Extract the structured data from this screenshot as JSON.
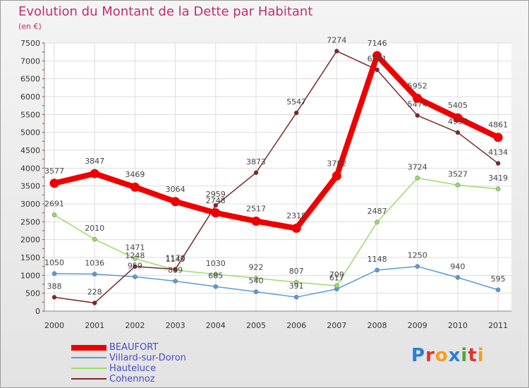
{
  "title": "Evolution du Montant de la Dette par Habitant",
  "subtitle": "(en €)",
  "logo": {
    "letters": [
      "P",
      "r",
      "o",
      "x",
      "i",
      "t",
      "i"
    ],
    "colors": [
      "#2a7fd4",
      "#e0342b",
      "#f0a020",
      "#2a7fd4",
      "#4aa83a",
      "#e0342b",
      "#f0a020"
    ]
  },
  "chart_data": {
    "type": "line",
    "categories": [
      "2000",
      "2001",
      "2002",
      "2003",
      "2004",
      "2005",
      "2006",
      "2007",
      "2008",
      "2009",
      "2010",
      "2011"
    ],
    "ylim": [
      0,
      7500
    ],
    "yticks": [
      "0",
      "500",
      "1000",
      "1500",
      "2000",
      "2500",
      "3000",
      "3500",
      "4000",
      "4500",
      "5000",
      "5500",
      "6000",
      "6500",
      "7000",
      "7500"
    ],
    "grid": true,
    "legend_position": "bottom-left",
    "series": [
      {
        "name": "BEAUFORT",
        "color": "#ee0000",
        "values": [
          3577,
          3847,
          3469,
          3064,
          2748,
          2517,
          2318,
          3782,
          7146,
          5952,
          5405,
          4861
        ]
      },
      {
        "name": "Villard-sur-Doron",
        "color": "#5b9bd5",
        "values": [
          1050,
          1036,
          959,
          839,
          685,
          540,
          391,
          617,
          1148,
          1250,
          940,
          595
        ]
      },
      {
        "name": "Hauteluce",
        "color": "#99dd66",
        "values": [
          2691,
          2010,
          1471,
          1149,
          1030,
          922,
          807,
          709,
          2487,
          3724,
          3527,
          3419
        ]
      },
      {
        "name": "Cohennoz",
        "color": "#7a2828",
        "values": [
          388,
          228,
          1248,
          1170,
          2959,
          3873,
          5547,
          7274,
          6751,
          5474,
          4997,
          4134
        ]
      }
    ]
  }
}
